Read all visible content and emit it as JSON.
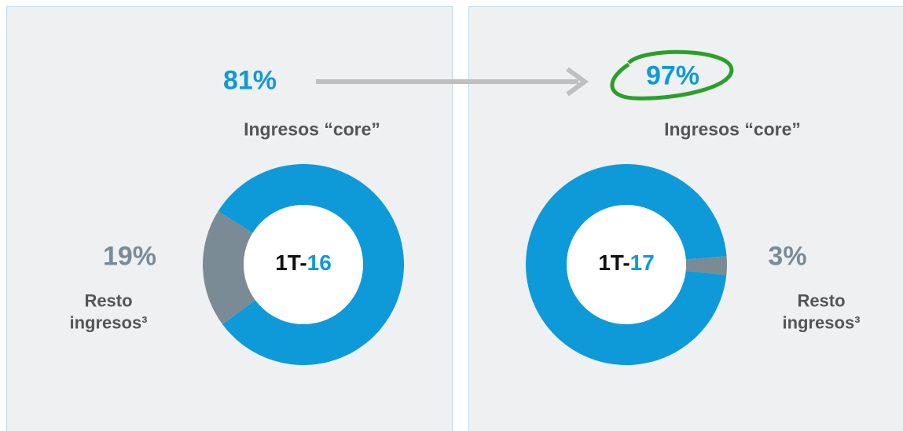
{
  "chart_data": [
    {
      "type": "pie",
      "categories": [
        "Ingresos “core”",
        "Resto ingresos³"
      ],
      "values": [
        81,
        19
      ],
      "value_labels": [
        "81%",
        "19%"
      ],
      "colors": [
        "#0e9ad8",
        "#7a8b96"
      ],
      "center_label_parts": [
        "1T-",
        "16"
      ]
    },
    {
      "type": "pie",
      "categories": [
        "Ingresos “core”",
        "Resto ingresos³"
      ],
      "values": [
        97,
        3
      ],
      "value_labels": [
        "97%",
        "3%"
      ],
      "colors": [
        "#0e9ad8",
        "#7a8b96"
      ],
      "center_label_parts": [
        "1T-",
        "17"
      ]
    }
  ]
}
